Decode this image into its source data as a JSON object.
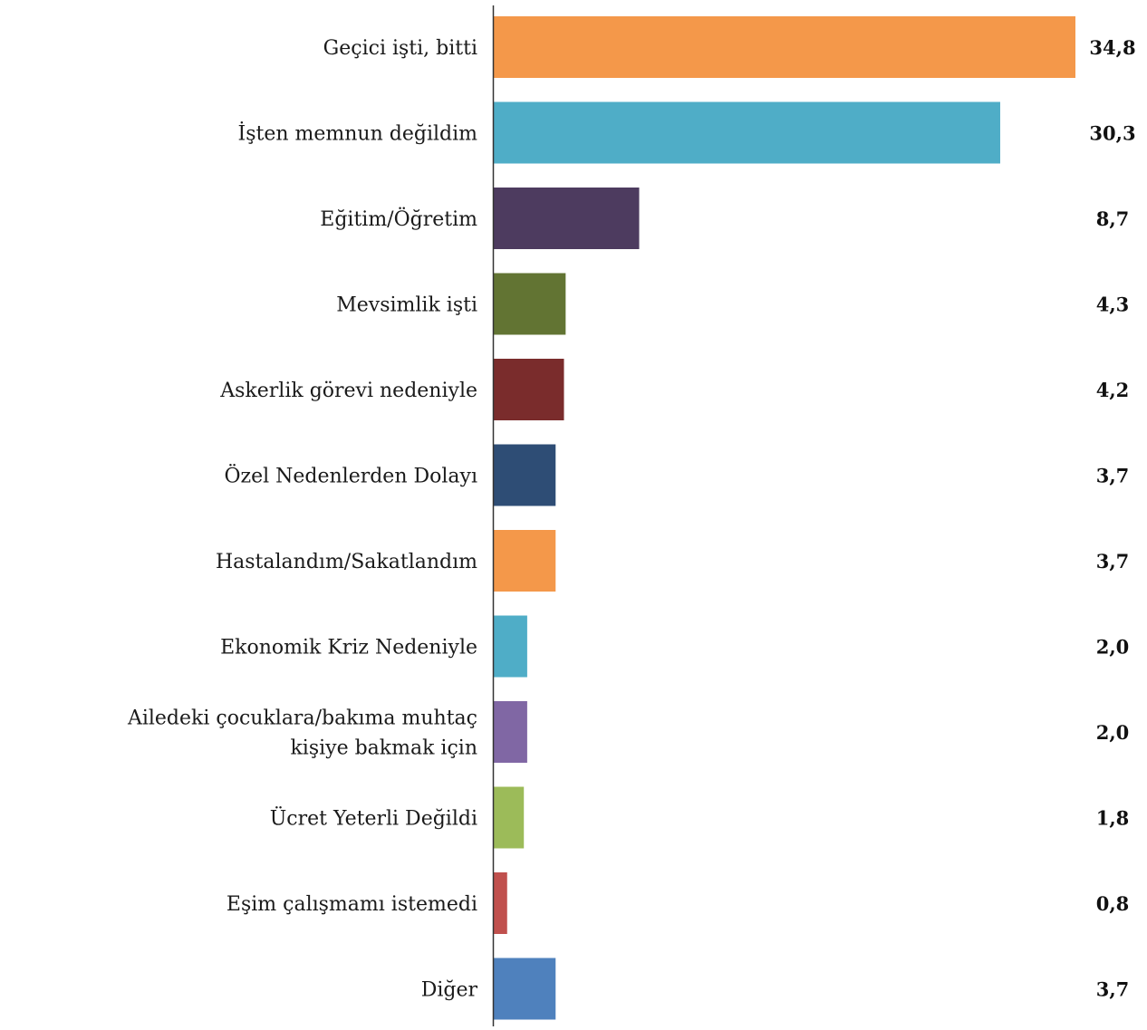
{
  "chart_data": {
    "type": "bar",
    "orientation": "horizontal",
    "title": "",
    "xlabel": "",
    "ylabel": "",
    "categories": [
      "Geçici işti, bitti",
      "İşten memnun değildim",
      "Eğitim/Öğretim",
      "Mevsimlik işti",
      "Askerlik görevi nedeniyle",
      "Özel Nedenlerden Dolayı",
      "Hastalandım/Sakatlandım",
      "Ekonomik Kriz Nedeniyle",
      "Ailedeki çocuklara/bakıma muhtaç kişiye bakmak için",
      "Ücret Yeterli Değildi",
      "Eşim çalışmamı istemedi",
      "Diğer"
    ],
    "values": [
      34.8,
      30.3,
      8.7,
      4.3,
      4.2,
      3.7,
      3.7,
      2.0,
      2.0,
      1.8,
      0.8,
      3.7
    ],
    "value_labels": [
      "34,8",
      "30,3",
      "8,7",
      "4,3",
      "4,2",
      "3,7",
      "3,7",
      "2,0",
      "2,0",
      "1,8",
      "0,8",
      "3,7"
    ],
    "colors": [
      "#f4984a",
      "#4fadc7",
      "#4d3b5f",
      "#627433",
      "#7a2c2c",
      "#2e4d75",
      "#f4984a",
      "#4fadc7",
      "#8067a4",
      "#9cbb59",
      "#c0504d",
      "#4f81bd"
    ],
    "xlim": [
      0,
      34.8
    ],
    "grid": false,
    "legend": "none"
  }
}
